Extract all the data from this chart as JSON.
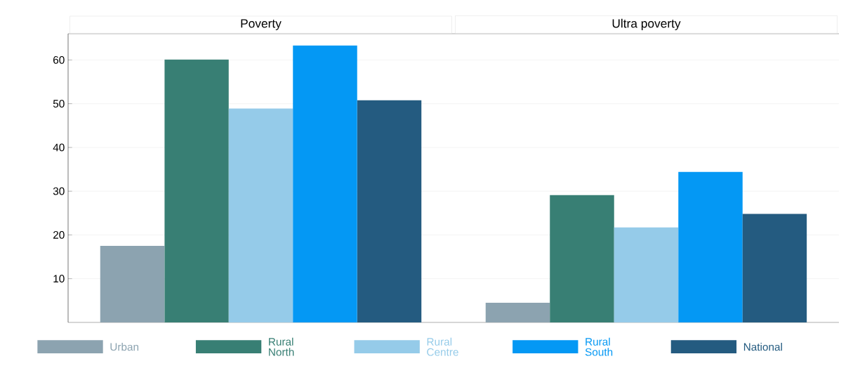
{
  "chart_data": {
    "type": "bar",
    "categories": [
      "Poverty",
      "Ultra poverty"
    ],
    "series": [
      {
        "name": "Urban",
        "color": "#8ca3b0",
        "values": [
          17.5,
          4.5
        ]
      },
      {
        "name": "Rural North",
        "color": "#387f74",
        "values": [
          60.1,
          29.1
        ]
      },
      {
        "name": "Rural Centre",
        "color": "#95cbe9",
        "values": [
          48.9,
          21.7
        ]
      },
      {
        "name": "Rural South",
        "color": "#0498f4",
        "values": [
          63.3,
          34.4
        ]
      },
      {
        "name": "National",
        "color": "#245b80",
        "values": [
          50.8,
          24.8
        ]
      }
    ],
    "ylim": [
      0,
      66
    ],
    "yticks": [
      10,
      20,
      30,
      40,
      50,
      60
    ],
    "grid": "y",
    "legend": "bottom"
  }
}
